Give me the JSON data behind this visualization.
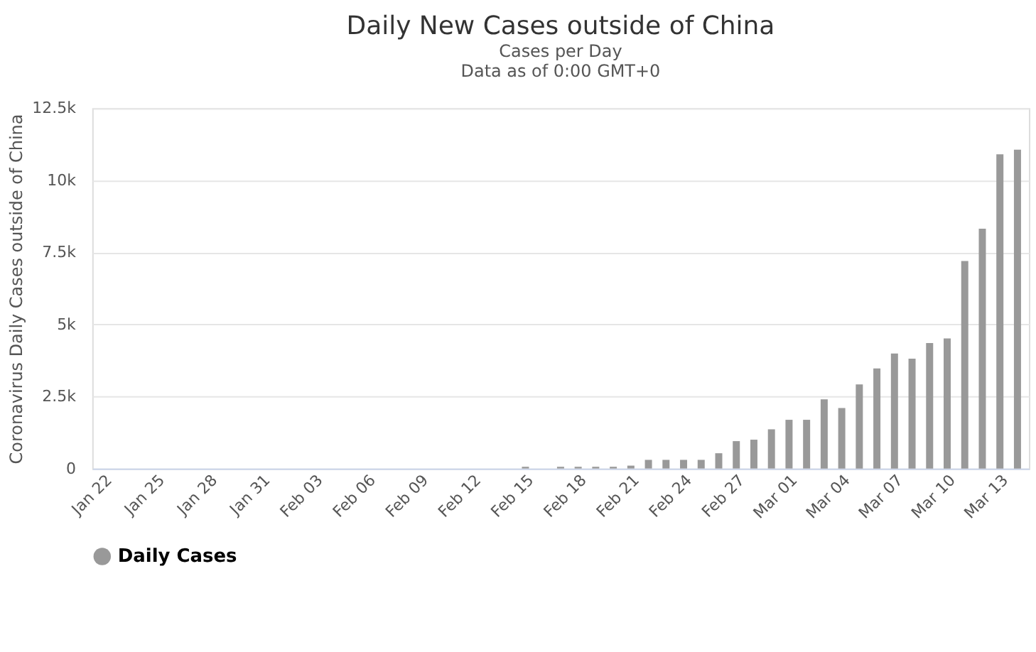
{
  "chart_data": {
    "type": "bar",
    "title": "Daily New Cases outside of China",
    "subtitle": "Cases per Day\nData as of 0:00 GMT+0",
    "ylabel": "Coronavirus Daily Cases outside of China",
    "categories": [
      "Jan 22",
      null,
      null,
      "Jan 25",
      null,
      null,
      "Jan 28",
      null,
      null,
      "Jan 31",
      null,
      null,
      "Feb 03",
      null,
      null,
      "Feb 06",
      null,
      null,
      "Feb 09",
      null,
      null,
      "Feb 12",
      null,
      null,
      "Feb 15",
      null,
      null,
      "Feb 18",
      null,
      null,
      "Feb 21",
      null,
      null,
      "Feb 24",
      null,
      null,
      "Feb 27",
      null,
      null,
      "Mar 01",
      null,
      null,
      "Mar 04",
      null,
      null,
      "Mar 07",
      null,
      null,
      "Mar 10",
      null,
      null,
      "Mar 13",
      null
    ],
    "series": [
      {
        "name": "Daily Cases",
        "color": "#999999",
        "values": [
          0,
          0,
          0,
          0,
          0,
          0,
          0,
          0,
          0,
          0,
          0,
          0,
          0,
          0,
          0,
          0,
          0,
          0,
          0,
          0,
          0,
          0,
          0,
          0,
          60,
          0,
          60,
          60,
          60,
          60,
          100,
          300,
          300,
          300,
          300,
          530,
          950,
          1000,
          1360,
          1690,
          1690,
          2400,
          2100,
          2920,
          3470,
          3990,
          3810,
          4350,
          4510,
          7200,
          8320,
          10900,
          11060
        ]
      }
    ],
    "ylim": [
      0,
      12500
    ],
    "yticks": [
      0,
      {
        "value": 2500,
        "label": "2.5k"
      },
      {
        "value": 5000,
        "label": "5k"
      },
      {
        "value": 7500,
        "label": "7.5k"
      },
      {
        "value": 10000,
        "label": "10k"
      },
      {
        "value": 12500,
        "label": "12.5k"
      }
    ],
    "grid": "y",
    "legend": "bottom"
  }
}
